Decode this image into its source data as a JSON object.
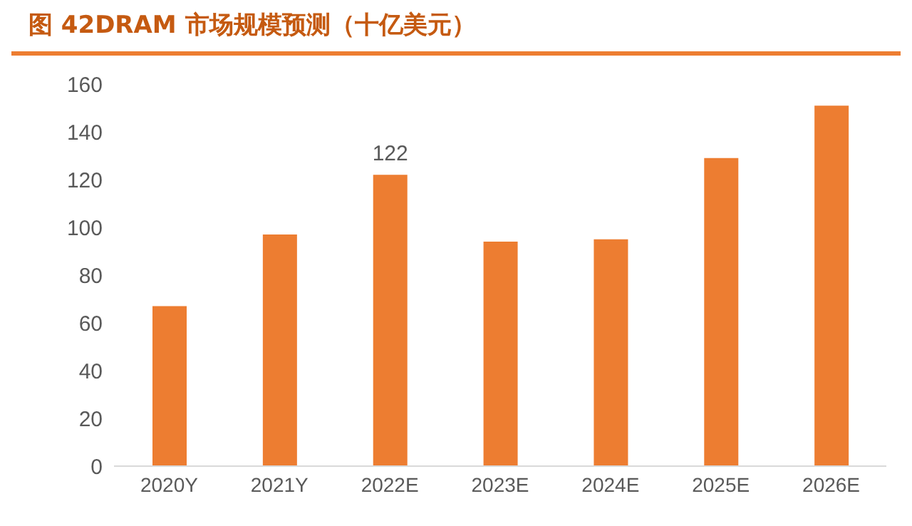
{
  "chart_data": {
    "type": "bar",
    "title": "图  42DRAM 市场规模预测（十亿美元）",
    "categories": [
      "2020Y",
      "2021Y",
      "2022E",
      "2023E",
      "2024E",
      "2025E",
      "2026E"
    ],
    "values": [
      67,
      97,
      122,
      94,
      95,
      129,
      151
    ],
    "value_labels": [
      null,
      null,
      "122",
      null,
      null,
      null,
      null
    ],
    "color": "#ed7d31",
    "ylim": [
      0,
      160
    ],
    "yticks": [
      0,
      20,
      40,
      60,
      80,
      100,
      120,
      140,
      160
    ],
    "grid": false,
    "legend": false
  }
}
